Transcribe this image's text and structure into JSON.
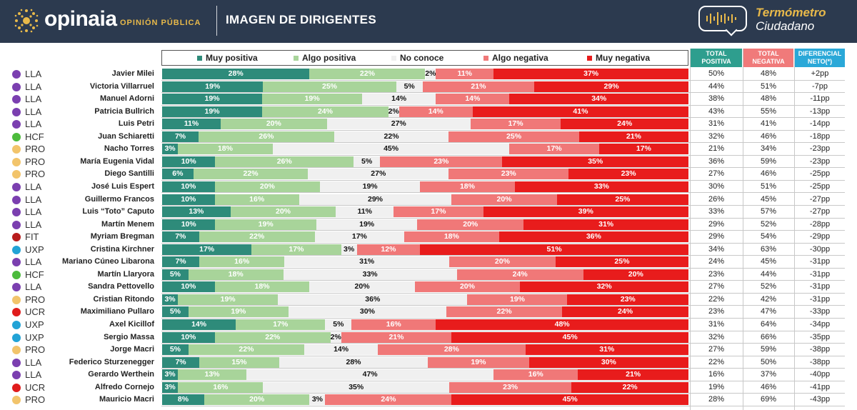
{
  "header": {
    "brand": "opinaia",
    "brand_sub": "OPINIÓN PÚBLICA",
    "title": "IMAGEN DE DIRIGENTES",
    "termometro_line1": "Termómetro",
    "termometro_line2": "Ciudadano"
  },
  "columns": {
    "total_positiva": "TOTAL POSITIVA",
    "total_negativa": "TOTAL NEGATIVA",
    "diferencial": "DIFERENCIAL NETO(*)"
  },
  "colors": {
    "header_bg": "#2c3a4f",
    "accent_gold": "#e8b94a",
    "muy_positiva": "#2e8b7a",
    "algo_positiva": "#a8d49a",
    "no_conoce": "#f0f0f0",
    "algo_negativa": "#f07878",
    "muy_negativa": "#e81c1c",
    "col_positiva": "#2e9e8e",
    "col_negativa": "#f07a7a",
    "col_diferencial": "#2aa8d8",
    "LLA": "#7b3fb0",
    "HCF": "#4cbb3c",
    "PRO": "#f2c46b",
    "FIT": "#b81c1c",
    "UXP": "#22a3d6",
    "UCR": "#e01c1c"
  },
  "chart_data": {
    "type": "bar",
    "orientation": "horizontal-stacked-100",
    "title": "IMAGEN DE DIRIGENTES",
    "legend": [
      "Muy positiva",
      "Algo positiva",
      "No conoce",
      "Algo negativa",
      "Muy negativa"
    ],
    "legend_placement": "top",
    "series_keys": [
      "mp",
      "ap",
      "nc",
      "an",
      "mn"
    ],
    "rows": [
      {
        "party": "LLA",
        "name": "Javier Milei",
        "mp": 28,
        "ap": 22,
        "nc": 2,
        "an": 11,
        "mn": 37,
        "pos": "50%",
        "neg": "48%",
        "dif": "+2pp"
      },
      {
        "party": "LLA",
        "name": "Victoria Villarruel",
        "mp": 19,
        "ap": 25,
        "nc": 5,
        "an": 21,
        "mn": 29,
        "pos": "44%",
        "neg": "51%",
        "dif": "-7pp"
      },
      {
        "party": "LLA",
        "name": "Manuel Adorni",
        "mp": 19,
        "ap": 19,
        "nc": 14,
        "an": 14,
        "mn": 34,
        "pos": "38%",
        "neg": "48%",
        "dif": "-11pp"
      },
      {
        "party": "LLA",
        "name": "Patricia Bullrich",
        "mp": 19,
        "ap": 24,
        "nc": 2,
        "an": 14,
        "mn": 41,
        "pos": "43%",
        "neg": "55%",
        "dif": "-13pp"
      },
      {
        "party": "LLA",
        "name": "Luis Petri",
        "mp": 11,
        "ap": 20,
        "nc": 27,
        "an": 17,
        "mn": 24,
        "pos": "31%",
        "neg": "41%",
        "dif": "-14pp"
      },
      {
        "party": "HCF",
        "name": "Juan Schiaretti",
        "mp": 7,
        "ap": 26,
        "nc": 22,
        "an": 25,
        "mn": 21,
        "pos": "32%",
        "neg": "46%",
        "dif": "-18pp"
      },
      {
        "party": "PRO",
        "name": "Nacho Torres",
        "mp": 3,
        "ap": 18,
        "nc": 45,
        "an": 17,
        "mn": 17,
        "pos": "21%",
        "neg": "34%",
        "dif": "-23pp"
      },
      {
        "party": "PRO",
        "name": "María Eugenia Vidal",
        "mp": 10,
        "ap": 26,
        "nc": 5,
        "an": 23,
        "mn": 35,
        "pos": "36%",
        "neg": "59%",
        "dif": "-23pp"
      },
      {
        "party": "PRO",
        "name": "Diego Santilli",
        "mp": 6,
        "ap": 22,
        "nc": 27,
        "an": 23,
        "mn": 23,
        "pos": "27%",
        "neg": "46%",
        "dif": "-25pp"
      },
      {
        "party": "LLA",
        "name": "José Luis Espert",
        "mp": 10,
        "ap": 20,
        "nc": 19,
        "an": 18,
        "mn": 33,
        "pos": "30%",
        "neg": "51%",
        "dif": "-25pp"
      },
      {
        "party": "LLA",
        "name": "Guillermo Francos",
        "mp": 10,
        "ap": 16,
        "nc": 29,
        "an": 20,
        "mn": 25,
        "pos": "26%",
        "neg": "45%",
        "dif": "-27pp"
      },
      {
        "party": "LLA",
        "name": "Luis “Toto” Caputo",
        "mp": 13,
        "ap": 20,
        "nc": 11,
        "an": 17,
        "mn": 39,
        "pos": "33%",
        "neg": "57%",
        "dif": "-27pp"
      },
      {
        "party": "LLA",
        "name": "Martín Menem",
        "mp": 10,
        "ap": 19,
        "nc": 19,
        "an": 20,
        "mn": 31,
        "pos": "29%",
        "neg": "52%",
        "dif": "-28pp"
      },
      {
        "party": "FIT",
        "name": "Myriam Bregman",
        "mp": 7,
        "ap": 22,
        "nc": 17,
        "an": 18,
        "mn": 36,
        "pos": "29%",
        "neg": "54%",
        "dif": "-29pp"
      },
      {
        "party": "UXP",
        "name": "Cristina Kirchner",
        "mp": 17,
        "ap": 17,
        "nc": 3,
        "an": 12,
        "mn": 51,
        "pos": "34%",
        "neg": "63%",
        "dif": "-30pp"
      },
      {
        "party": "LLA",
        "name": "Mariano Cúneo Libarona",
        "mp": 7,
        "ap": 16,
        "nc": 31,
        "an": 20,
        "mn": 25,
        "pos": "24%",
        "neg": "45%",
        "dif": "-31pp"
      },
      {
        "party": "HCF",
        "name": "Martín Llaryora",
        "mp": 5,
        "ap": 18,
        "nc": 33,
        "an": 24,
        "mn": 20,
        "pos": "23%",
        "neg": "44%",
        "dif": "-31pp"
      },
      {
        "party": "LLA",
        "name": "Sandra Pettovello",
        "mp": 10,
        "ap": 18,
        "nc": 20,
        "an": 20,
        "mn": 32,
        "pos": "27%",
        "neg": "52%",
        "dif": "-31pp"
      },
      {
        "party": "PRO",
        "name": "Cristian Ritondo",
        "mp": 3,
        "ap": 19,
        "nc": 36,
        "an": 19,
        "mn": 23,
        "pos": "22%",
        "neg": "42%",
        "dif": "-31pp"
      },
      {
        "party": "UCR",
        "name": "Maximiliano Pullaro",
        "mp": 5,
        "ap": 19,
        "nc": 30,
        "an": 22,
        "mn": 24,
        "pos": "23%",
        "neg": "47%",
        "dif": "-33pp"
      },
      {
        "party": "UXP",
        "name": "Axel Kicillof",
        "mp": 14,
        "ap": 17,
        "nc": 5,
        "an": 16,
        "mn": 48,
        "pos": "31%",
        "neg": "64%",
        "dif": "-34pp"
      },
      {
        "party": "UXP",
        "name": "Sergio Massa",
        "mp": 10,
        "ap": 22,
        "nc": 2,
        "an": 21,
        "mn": 45,
        "pos": "32%",
        "neg": "66%",
        "dif": "-35pp"
      },
      {
        "party": "PRO",
        "name": "Jorge Macri",
        "mp": 5,
        "ap": 22,
        "nc": 14,
        "an": 28,
        "mn": 31,
        "pos": "27%",
        "neg": "59%",
        "dif": "-38pp"
      },
      {
        "party": "LLA",
        "name": "Federico Sturzenegger",
        "mp": 7,
        "ap": 15,
        "nc": 28,
        "an": 19,
        "mn": 30,
        "pos": "22%",
        "neg": "50%",
        "dif": "-38pp"
      },
      {
        "party": "LLA",
        "name": "Gerardo Werthein",
        "mp": 3,
        "ap": 13,
        "nc": 47,
        "an": 16,
        "mn": 21,
        "pos": "16%",
        "neg": "37%",
        "dif": "-40pp"
      },
      {
        "party": "UCR",
        "name": "Alfredo Cornejo",
        "mp": 3,
        "ap": 16,
        "nc": 35,
        "an": 23,
        "mn": 22,
        "pos": "19%",
        "neg": "46%",
        "dif": "-41pp"
      },
      {
        "party": "PRO",
        "name": "Mauricio Macri",
        "mp": 8,
        "ap": 20,
        "nc": 3,
        "an": 24,
        "mn": 45,
        "pos": "28%",
        "neg": "69%",
        "dif": "-43pp"
      }
    ]
  }
}
